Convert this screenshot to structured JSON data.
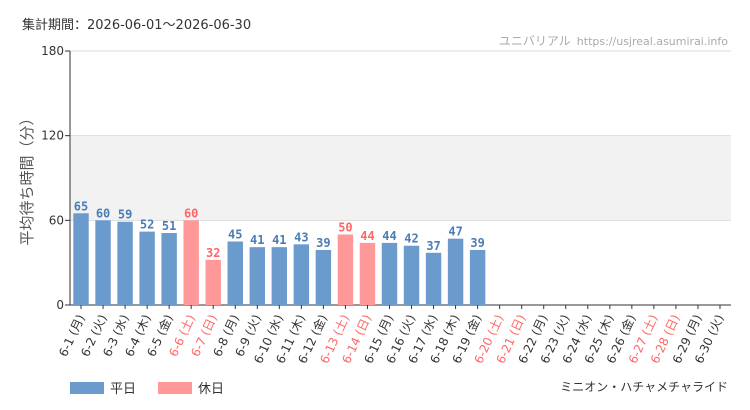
{
  "header": {
    "period": "集計期間：2026-06-01〜2026-06-30",
    "site_name": "ユニバリアル",
    "site_url": "https://usjreal.asumirai.info"
  },
  "footer": {
    "attraction": "ミニオン・ハチャメチャライド"
  },
  "colors": {
    "weekday": "#6b9bcd",
    "holiday": "#ff9999",
    "weekday_label": "#4a7db5",
    "holiday_label": "#ff6666",
    "band": "#f2f2f2",
    "grid": "#dddddd",
    "axis": "#333333"
  },
  "chart_data": {
    "type": "bar",
    "ylabel": "平均待ち時間（分）",
    "ylim": [
      0,
      180
    ],
    "yticks": [
      0,
      60,
      120,
      180
    ],
    "legend": [
      {
        "key": "weekday",
        "label": "平日"
      },
      {
        "key": "holiday",
        "label": "休日"
      }
    ],
    "legend_position": "bottom-left",
    "categories": [
      "6-1 (月)",
      "6-2 (火)",
      "6-3 (水)",
      "6-4 (木)",
      "6-5 (金)",
      "6-6 (土)",
      "6-7 (日)",
      "6-8 (月)",
      "6-9 (火)",
      "6-10 (水)",
      "6-11 (木)",
      "6-12 (金)",
      "6-13 (土)",
      "6-14 (日)",
      "6-15 (月)",
      "6-16 (火)",
      "6-17 (水)",
      "6-18 (木)",
      "6-19 (金)",
      "6-20 (土)",
      "6-21 (日)",
      "6-22 (月)",
      "6-23 (火)",
      "6-24 (水)",
      "6-25 (木)",
      "6-26 (金)",
      "6-27 (土)",
      "6-28 (日)",
      "6-29 (月)",
      "6-30 (火)"
    ],
    "day_types": [
      "weekday",
      "weekday",
      "weekday",
      "weekday",
      "weekday",
      "holiday",
      "holiday",
      "weekday",
      "weekday",
      "weekday",
      "weekday",
      "weekday",
      "holiday",
      "holiday",
      "weekday",
      "weekday",
      "weekday",
      "weekday",
      "weekday",
      "holiday",
      "holiday",
      "weekday",
      "weekday",
      "weekday",
      "weekday",
      "weekday",
      "holiday",
      "holiday",
      "weekday",
      "weekday"
    ],
    "values": [
      65,
      60,
      59,
      52,
      51,
      60,
      32,
      45,
      41,
      41,
      43,
      39,
      50,
      44,
      44,
      42,
      37,
      47,
      39,
      null,
      null,
      null,
      null,
      null,
      null,
      null,
      null,
      null,
      null,
      null
    ]
  }
}
